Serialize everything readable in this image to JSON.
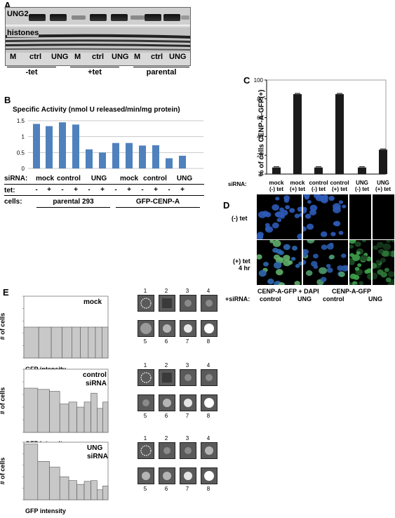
{
  "panelA": {
    "label": "A",
    "protein_top": "UNG2",
    "protein_bottom": "histones",
    "lanes": [
      "M",
      "ctrl",
      "UNG",
      "M",
      "ctrl",
      "UNG",
      "M",
      "ctrl",
      "UNG"
    ],
    "groups": [
      "-tet",
      "+tet",
      "parental"
    ]
  },
  "panelB": {
    "label": "B",
    "row_labels": {
      "sirna": "siRNA:",
      "tet": "tet:",
      "cells": "cells:"
    },
    "sirna": [
      "mock",
      "control",
      "UNG",
      "mock",
      "control",
      "UNG"
    ],
    "tet": [
      "-",
      "+",
      "-",
      "+",
      "-",
      "+",
      "-",
      "+",
      "-",
      "+",
      "-",
      "+"
    ],
    "cells": [
      "parental 293",
      "GFP-CENP-A"
    ]
  },
  "panelC": {
    "label": "C",
    "sirna_label": "siRNA:",
    "groups": [
      {
        "sirna": "mock",
        "tet": "(-) tet"
      },
      {
        "sirna": "mock",
        "tet": "(+) tet"
      },
      {
        "sirna": "control",
        "tet": "(-) tet"
      },
      {
        "sirna": "control",
        "tet": "(+) tet"
      },
      {
        "sirna": "UNG",
        "tet": "(-) tet"
      },
      {
        "sirna": "UNG",
        "tet": "(+) tet"
      }
    ]
  },
  "panelD": {
    "label": "D",
    "row1": "(-) tet",
    "row2a": "(+) tet",
    "row2b": "4 hr",
    "cap_left": "CENP-A-GFP + DAPI",
    "cap_right": "CENP-A-GFP",
    "sirna_prefix": "+siRNA:",
    "cond_control": "control",
    "cond_ung": "UNG",
    "cond_control2": "control",
    "cond_ung2": "UNG"
  },
  "panelE": {
    "label": "E",
    "ylabel": "# of cells",
    "xlabel": "GFP intensity",
    "hist1_label": "mock",
    "hist2_label_a": "control",
    "hist2_label_b": "siRNA",
    "hist3_label_a": "UNG",
    "hist3_label_b": "siRNA",
    "thumb_numbers": [
      "1",
      "2",
      "3",
      "4",
      "5",
      "6",
      "7",
      "8"
    ],
    "histograms": [
      {
        "name": "mock",
        "values": [
          50,
          50,
          50,
          50,
          50,
          50,
          50,
          50,
          50
        ]
      },
      {
        "name": "control siRNA",
        "values": [
          70,
          68,
          65,
          45,
          48,
          40,
          48,
          62,
          38,
          48
        ]
      },
      {
        "name": "UNG siRNA",
        "values": [
          145,
          100,
          85,
          60,
          50,
          40,
          48,
          50,
          26,
          36
        ]
      }
    ]
  },
  "chart_data": [
    {
      "type": "bar",
      "title": "Specific Activity (nmol U released/min/mg protein)",
      "categories": [
        "mock -",
        "mock +",
        "control -",
        "control +",
        "UNG -",
        "UNG +",
        "mock -",
        "mock +",
        "control -",
        "control +",
        "UNG -",
        "UNG +"
      ],
      "values": [
        1.4,
        1.33,
        1.45,
        1.38,
        0.6,
        0.5,
        0.8,
        0.8,
        0.72,
        0.73,
        0.32,
        0.4
      ],
      "ylim": [
        0,
        1.5
      ],
      "yticks": [
        "0",
        "0.5",
        "1",
        "1.5"
      ],
      "grid": true,
      "color": "#4f81bd"
    },
    {
      "type": "bar",
      "ylabel": "% of cells CENP-A-GFP(+)",
      "categories": [
        "mock (-) tet",
        "mock (+) tet",
        "control (-) tet",
        "control (+) tet",
        "UNG (-) tet",
        "UNG (+) tet"
      ],
      "values": [
        7,
        85,
        7,
        85,
        7,
        26
      ],
      "ylim": [
        0,
        100
      ],
      "yticks": [
        "0",
        "20",
        "40",
        "60",
        "80",
        "100"
      ],
      "color": "#1a1a1a"
    }
  ]
}
